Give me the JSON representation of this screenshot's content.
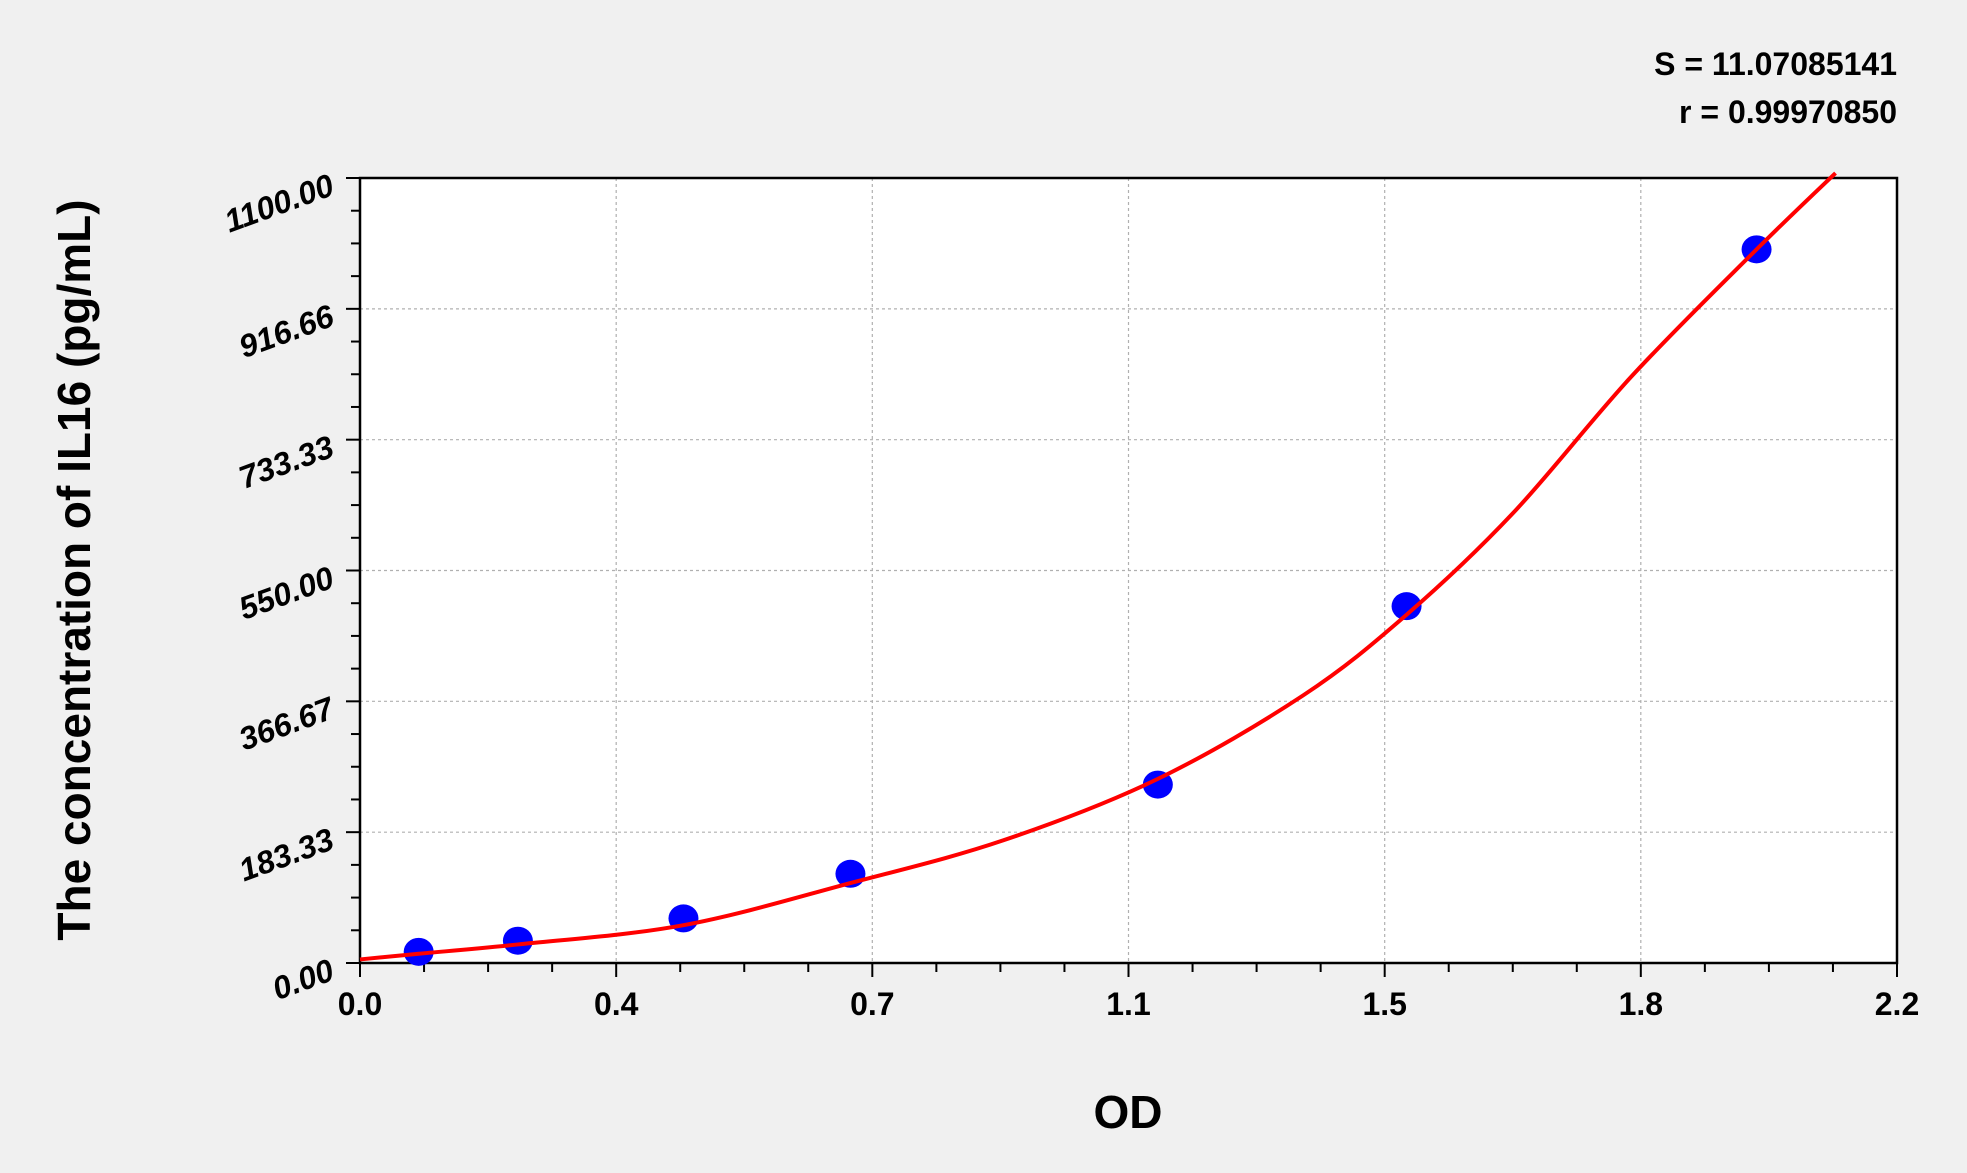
{
  "chart_data": {
    "type": "scatter",
    "title": "",
    "xlabel": "OD",
    "ylabel": "The concentration of IL16 (pg/mL)",
    "xlim": [
      0,
      2.2
    ],
    "ylim": [
      0,
      1100
    ],
    "x_ticks": [
      0,
      0.3667,
      0.7333,
      1.1,
      1.4667,
      1.8333,
      2.2
    ],
    "x_tick_labels": [
      "0.0",
      "0.4",
      "0.7",
      "1.1",
      "1.5",
      "1.8",
      "2.2"
    ],
    "y_ticks": [
      0,
      183.33,
      366.67,
      550,
      733.33,
      916.66,
      1100
    ],
    "y_tick_labels": [
      "0.00",
      "183.33",
      "366.67",
      "550.00",
      "733.33",
      "916.66",
      "1100.00"
    ],
    "grid": true,
    "annotations": {
      "s": "S = 11.07085141",
      "r": "r = 0.99970850"
    },
    "points": [
      {
        "x": 0.084,
        "y": 15.63
      },
      {
        "x": 0.226,
        "y": 31.25
      },
      {
        "x": 0.463,
        "y": 62.5
      },
      {
        "x": 0.702,
        "y": 125
      },
      {
        "x": 1.142,
        "y": 250
      },
      {
        "x": 1.498,
        "y": 500
      },
      {
        "x": 1.999,
        "y": 1000
      }
    ],
    "fit_curve": [
      [
        0,
        5
      ],
      [
        0.084,
        13
      ],
      [
        0.226,
        26
      ],
      [
        0.463,
        53
      ],
      [
        0.702,
        112
      ],
      [
        0.921,
        172
      ],
      [
        1.142,
        258
      ],
      [
        1.35,
        375
      ],
      [
        1.498,
        488
      ],
      [
        1.65,
        630
      ],
      [
        1.82,
        822
      ],
      [
        1.999,
        1000
      ],
      [
        2.112,
        1107
      ]
    ],
    "colors": {
      "points": "#0000ff",
      "curve": "#ff0000",
      "background": "#f0f0f0",
      "plot_area": "#ffffff",
      "grid": "#b0b0b0"
    }
  }
}
